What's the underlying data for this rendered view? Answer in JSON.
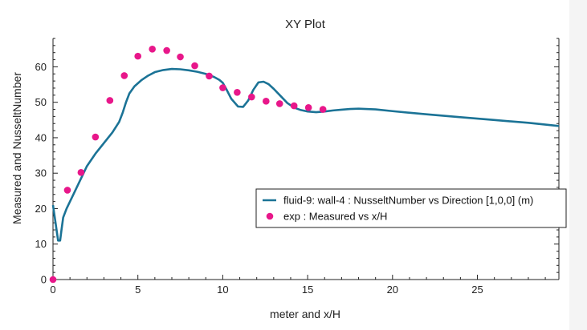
{
  "chart_data": {
    "type": "line",
    "title": "XY Plot",
    "xlabel": "meter and x/H",
    "ylabel": "Measured and NusseltNumber",
    "xlim": [
      0,
      29.8
    ],
    "ylim": [
      0,
      68
    ],
    "x_ticks": [
      0,
      5,
      10,
      15,
      20,
      25
    ],
    "y_ticks": [
      0,
      10,
      20,
      30,
      40,
      50,
      60
    ],
    "x_minor_step": 1,
    "y_minor_step": 2,
    "grid": false,
    "legend_position": "right",
    "series": [
      {
        "name": "fluid-9: wall-4 : NusseltNumber vs Direction [1,0,0] (m)",
        "kind": "line",
        "color": "#1b7396",
        "x": [
          0,
          0.15,
          0.3,
          0.42,
          0.5,
          0.6,
          0.8,
          1.2,
          1.6,
          2.0,
          2.5,
          3.0,
          3.5,
          3.9,
          4.1,
          4.3,
          4.5,
          4.8,
          5.2,
          5.6,
          6.0,
          6.5,
          7.0,
          7.5,
          8.0,
          8.5,
          9.0,
          9.5,
          9.8,
          10.0,
          10.2,
          10.5,
          10.9,
          11.2,
          11.5,
          11.8,
          12.1,
          12.4,
          12.7,
          13.0,
          13.4,
          13.8,
          14.2,
          14.6,
          15.0,
          15.5,
          16.0,
          16.5,
          17.0,
          17.5,
          18.0,
          19.0,
          20.0,
          22.0,
          24.0,
          26.0,
          28.0,
          29.8
        ],
        "y": [
          21,
          16,
          11,
          11,
          14,
          17.5,
          20,
          24,
          28,
          32,
          35.5,
          38.5,
          41.5,
          44.5,
          47,
          50,
          52.5,
          54.5,
          56.2,
          57.5,
          58.5,
          59.1,
          59.4,
          59.3,
          59.0,
          58.6,
          58.0,
          57.1,
          56.3,
          55.5,
          53.8,
          51.0,
          48.8,
          48.7,
          50.5,
          53.5,
          55.6,
          55.8,
          55.1,
          53.8,
          51.8,
          49.8,
          48.5,
          47.8,
          47.4,
          47.2,
          47.4,
          47.7,
          47.9,
          48.1,
          48.2,
          48.0,
          47.5,
          46.6,
          45.8,
          45.0,
          44.2,
          43.3
        ]
      },
      {
        "name": "exp : Measured vs x/H",
        "kind": "scatter",
        "color": "#e8178a",
        "x": [
          0,
          0.85,
          1.65,
          2.5,
          3.35,
          4.2,
          5.0,
          5.85,
          6.7,
          7.5,
          8.35,
          9.2,
          10.0,
          10.85,
          11.7,
          12.55,
          13.35,
          14.2,
          15.05,
          15.9
        ],
        "y": [
          0,
          25.2,
          30.2,
          40.2,
          50.5,
          57.5,
          63.0,
          65.0,
          64.6,
          62.8,
          60.3,
          57.4,
          54.1,
          52.8,
          51.5,
          50.3,
          49.6,
          49.0,
          48.5,
          48.0
        ]
      }
    ]
  }
}
